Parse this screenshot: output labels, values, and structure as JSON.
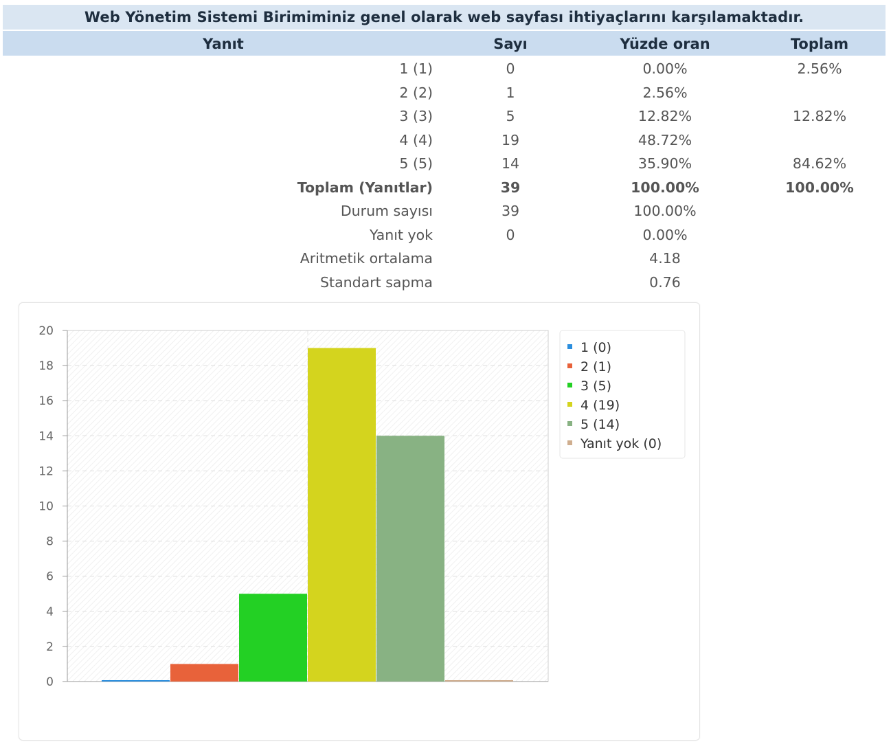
{
  "title": "Web Yönetim Sistemi Birimiminiz genel olarak web sayfası ihtiyaçlarını karşılamaktadır.",
  "headers": {
    "answer": "Yanıt",
    "count": "Sayı",
    "percent": "Yüzde oran",
    "total": "Toplam"
  },
  "rows": [
    {
      "label": "1 (1)",
      "count": "0",
      "percent": "0.00%",
      "total": "2.56%",
      "bold": false
    },
    {
      "label": "2 (2)",
      "count": "1",
      "percent": "2.56%",
      "total": "",
      "bold": false
    },
    {
      "label": "3 (3)",
      "count": "5",
      "percent": "12.82%",
      "total": "12.82%",
      "bold": false
    },
    {
      "label": "4 (4)",
      "count": "19",
      "percent": "48.72%",
      "total": "",
      "bold": false
    },
    {
      "label": "5 (5)",
      "count": "14",
      "percent": "35.90%",
      "total": "84.62%",
      "bold": false
    },
    {
      "label": "Toplam (Yanıtlar)",
      "count": "39",
      "percent": "100.00%",
      "total": "100.00%",
      "bold": true
    },
    {
      "label": "Durum sayısı",
      "count": "39",
      "percent": "100.00%",
      "total": "",
      "bold": false
    },
    {
      "label": "Yanıt yok",
      "count": "0",
      "percent": "0.00%",
      "total": "",
      "bold": false
    },
    {
      "label": "Aritmetik ortalama",
      "count": "",
      "percent": "4.18",
      "total": "",
      "bold": false
    },
    {
      "label": "Standart sapma",
      "count": "",
      "percent": "0.76",
      "total": "",
      "bold": false
    }
  ],
  "chart_data": {
    "type": "bar",
    "title": "",
    "xlabel": "",
    "ylabel": "",
    "ylim": [
      0,
      20
    ],
    "yticks": [
      0,
      2,
      4,
      6,
      8,
      10,
      12,
      14,
      16,
      18,
      20
    ],
    "grid": true,
    "legend_position": "top-right",
    "series": [
      {
        "name": "1 (0)",
        "value": 0,
        "color": "#2b8ede"
      },
      {
        "name": "2 (1)",
        "value": 1,
        "color": "#e8623a"
      },
      {
        "name": "3 (5)",
        "value": 5,
        "color": "#23d024"
      },
      {
        "name": "4 (19)",
        "value": 19,
        "color": "#d4d41e"
      },
      {
        "name": "5 (14)",
        "value": 14,
        "color": "#88b283"
      },
      {
        "name": "Yanıt yok (0)",
        "value": 0,
        "color": "#cfae8f"
      }
    ]
  },
  "colors": {
    "title_bg": "#dae6f2",
    "header_bg": "#cadcef",
    "header_text": "#1e2e3f"
  }
}
